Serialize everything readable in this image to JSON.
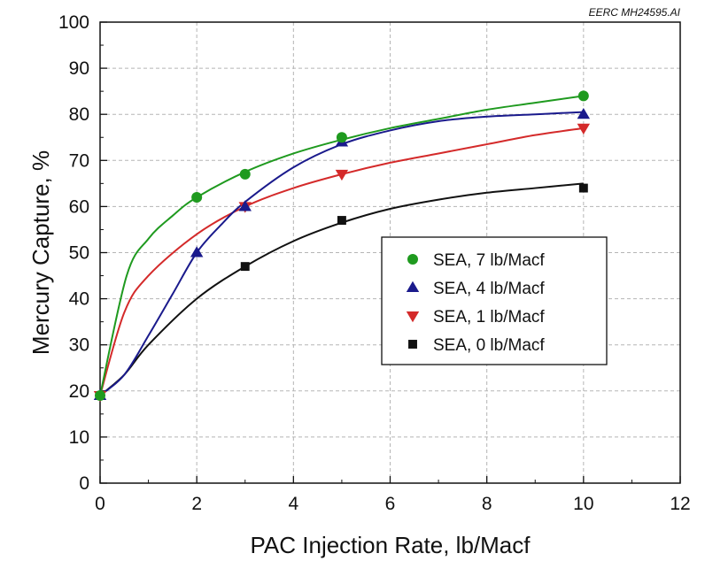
{
  "corner_note": "EERC MH24595.AI",
  "colors": {
    "series_7": "#1f9a1f",
    "series_4": "#1a1a8c",
    "series_1": "#d42a2a",
    "series_0": "#111111",
    "grid": "#b5b5b5"
  },
  "chart_data": {
    "type": "scatter",
    "title": "",
    "xlabel": "PAC Injection Rate, lb/Macf",
    "ylabel": "Mercury Capture, %",
    "xlim": [
      0,
      12
    ],
    "ylim": [
      0,
      100
    ],
    "xticks": [
      "0",
      "2",
      "4",
      "6",
      "8",
      "10",
      "12"
    ],
    "yticks": [
      "0",
      "10",
      "20",
      "30",
      "40",
      "50",
      "60",
      "70",
      "80",
      "90",
      "100"
    ],
    "grid": true,
    "legend_position": "center-right",
    "series": [
      {
        "name": "SEA, 7 lb/Macf",
        "marker": "circle",
        "color_key": "series_7",
        "points": [
          [
            0,
            19
          ],
          [
            2,
            62
          ],
          [
            3,
            67
          ],
          [
            5,
            75
          ],
          [
            10,
            84
          ]
        ],
        "fit": [
          [
            0,
            19
          ],
          [
            0.55,
            45
          ],
          [
            1,
            53
          ],
          [
            1.5,
            58
          ],
          [
            2,
            62
          ],
          [
            3,
            67.5
          ],
          [
            4,
            71.5
          ],
          [
            5,
            74.5
          ],
          [
            6,
            77
          ],
          [
            7,
            79
          ],
          [
            8,
            81
          ],
          [
            9,
            82.5
          ],
          [
            10,
            84
          ]
        ]
      },
      {
        "name": "SEA, 4 lb/Macf",
        "marker": "triangle-up",
        "color_key": "series_4",
        "points": [
          [
            0,
            19
          ],
          [
            2,
            50
          ],
          [
            3,
            60
          ],
          [
            5,
            74
          ],
          [
            10,
            80
          ]
        ],
        "fit": [
          [
            0,
            19
          ],
          [
            0.5,
            23.5
          ],
          [
            1,
            32
          ],
          [
            1.5,
            41
          ],
          [
            2,
            50
          ],
          [
            2.5,
            56
          ],
          [
            3,
            61
          ],
          [
            4,
            68.5
          ],
          [
            5,
            73.5
          ],
          [
            6,
            76.5
          ],
          [
            7,
            78.5
          ],
          [
            8,
            79.5
          ],
          [
            9,
            80
          ],
          [
            10,
            80.5
          ]
        ]
      },
      {
        "name": "SEA, 1 lb/Macf",
        "marker": "triangle-down",
        "color_key": "series_1",
        "points": [
          [
            0,
            19
          ],
          [
            3,
            60
          ],
          [
            5,
            67
          ],
          [
            10,
            77
          ]
        ],
        "fit": [
          [
            0,
            19
          ],
          [
            0.5,
            37
          ],
          [
            1,
            45
          ],
          [
            2,
            54
          ],
          [
            3,
            60
          ],
          [
            4,
            64
          ],
          [
            5,
            67
          ],
          [
            6,
            69.5
          ],
          [
            7,
            71.5
          ],
          [
            8,
            73.5
          ],
          [
            9,
            75.5
          ],
          [
            10,
            77
          ]
        ]
      },
      {
        "name": "SEA, 0 lb/Macf",
        "marker": "square",
        "color_key": "series_0",
        "points": [
          [
            0,
            19
          ],
          [
            3,
            47
          ],
          [
            5,
            57
          ],
          [
            10,
            64
          ]
        ],
        "fit": [
          [
            0,
            19
          ],
          [
            0.5,
            23.5
          ],
          [
            1,
            30
          ],
          [
            2,
            40
          ],
          [
            3,
            47
          ],
          [
            4,
            52.5
          ],
          [
            5,
            56.5
          ],
          [
            6,
            59.5
          ],
          [
            7,
            61.5
          ],
          [
            8,
            63
          ],
          [
            9,
            64
          ],
          [
            10,
            65
          ]
        ]
      }
    ]
  }
}
